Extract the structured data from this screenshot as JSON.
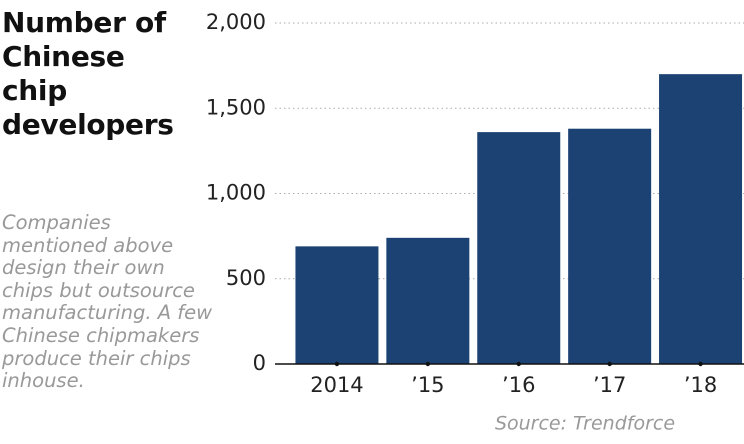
{
  "chart_data": {
    "type": "bar",
    "title": "Number of Chinese chip developers",
    "subtitle": "Companies mentioned above design their own chips but outsource manufacturing. A few Chinese chipmakers produce their chips inhouse.",
    "source": "Source: Trendforce",
    "categories": [
      "2014",
      "’15",
      "’16",
      "’17",
      "’18"
    ],
    "values": [
      690,
      740,
      1360,
      1380,
      1700
    ],
    "color": "#1b4272",
    "ylim": [
      0,
      2000
    ],
    "yticks": [
      0,
      500,
      {
        "value": 1000,
        "label": "1,000"
      },
      {
        "value": 1500,
        "label": "1,500"
      },
      {
        "value": 2000,
        "label": "2,000"
      }
    ],
    "grid": true
  }
}
